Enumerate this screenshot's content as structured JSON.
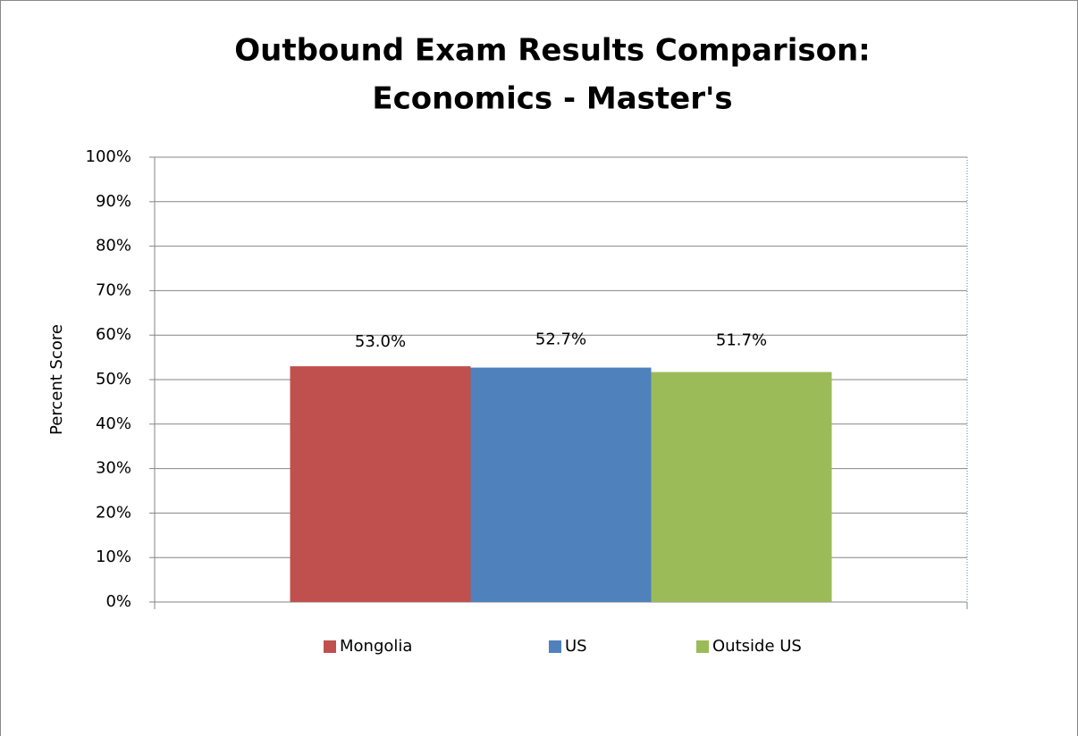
{
  "chart_data": {
    "type": "bar",
    "title": [
      "Outbound Exam Results Comparison:",
      "Economics - Master's"
    ],
    "y_label": "Percent Score",
    "categories": [
      null
    ],
    "series": [
      {
        "name": "Mongolia",
        "color": "#c0504d",
        "values": [
          53.0
        ],
        "value_labels": [
          "53.0%"
        ]
      },
      {
        "name": "US",
        "color": "#4f81bd",
        "values": [
          52.7
        ],
        "value_labels": [
          "52.7%"
        ]
      },
      {
        "name": "Outside US",
        "color": "#9bbb59",
        "values": [
          51.7
        ],
        "value_labels": [
          "51.7%"
        ]
      }
    ],
    "ylim": [
      0,
      100
    ],
    "yticks": [
      {
        "value": 0,
        "label": "0%"
      },
      {
        "value": 10,
        "label": "10%"
      },
      {
        "value": 20,
        "label": "20%"
      },
      {
        "value": 30,
        "label": "30%"
      },
      {
        "value": 40,
        "label": "40%"
      },
      {
        "value": 50,
        "label": "50%"
      },
      {
        "value": 60,
        "label": "60%"
      },
      {
        "value": 70,
        "label": "70%"
      },
      {
        "value": 80,
        "label": "80%"
      },
      {
        "value": 90,
        "label": "90%"
      },
      {
        "value": 100,
        "label": "100%"
      }
    ],
    "grid": true,
    "legend": "bottom"
  }
}
